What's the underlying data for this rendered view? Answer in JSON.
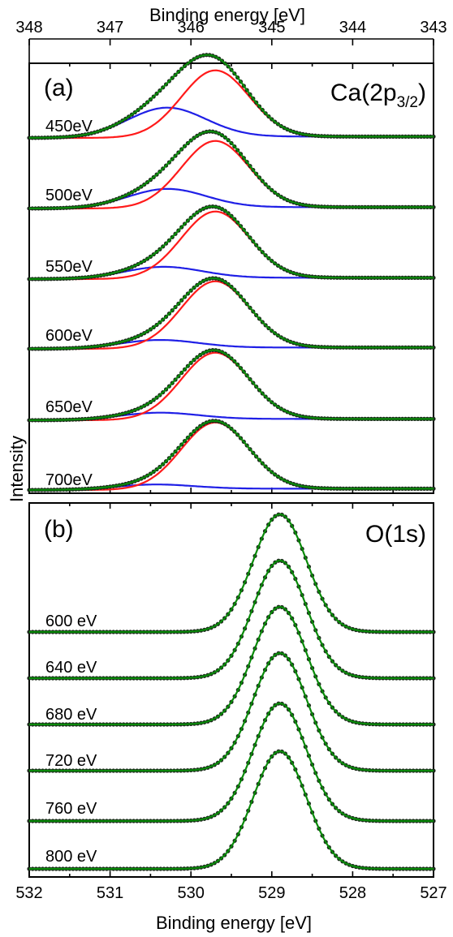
{
  "chart_data": [
    {
      "type": "line",
      "panel_label": "(a)",
      "title": "Ca(2p",
      "title_sub": "3/2",
      "title_end": ")",
      "xlabel": "Binding energy [eV]",
      "ylabel": "Intensity",
      "x_axis_position": "top",
      "xlim": [
        348,
        343
      ],
      "x_reversed": true,
      "x_ticks": [
        "348",
        "347",
        "346",
        "345",
        "344",
        "343"
      ],
      "grid": false,
      "components": [
        {
          "name": "Ca 2p3/2 main component",
          "color": "#ff1a1a",
          "center_eV": 345.7
        },
        {
          "name": "Ca 2p3/2 high-BE component",
          "color": "#1f1fe6",
          "center_eV": 346.3
        },
        {
          "name": "fit envelope",
          "color": "#0a8a0a"
        },
        {
          "name": "data",
          "color": "#1b2a1b",
          "marker": "dot"
        }
      ],
      "series": [
        {
          "label": "450eV",
          "main_peak_eV": 345.7,
          "main_rel_height": 1.0,
          "high_be_peak_eV": 346.3,
          "high_be_rel_height": 0.45,
          "background_rel": 0.02
        },
        {
          "label": "500eV",
          "main_peak_eV": 345.7,
          "main_rel_height": 1.0,
          "high_be_peak_eV": 346.3,
          "high_be_rel_height": 0.29,
          "background_rel": 0.02
        },
        {
          "label": "550eV",
          "main_peak_eV": 345.7,
          "main_rel_height": 1.0,
          "high_be_peak_eV": 346.35,
          "high_be_rel_height": 0.18,
          "background_rel": 0.02
        },
        {
          "label": "600eV",
          "main_peak_eV": 345.7,
          "main_rel_height": 1.0,
          "high_be_peak_eV": 346.4,
          "high_be_rel_height": 0.13,
          "background_rel": 0.02
        },
        {
          "label": "650eV",
          "main_peak_eV": 345.7,
          "main_rel_height": 1.0,
          "high_be_peak_eV": 346.4,
          "high_be_rel_height": 0.11,
          "background_rel": 0.02
        },
        {
          "label": "700eV",
          "main_peak_eV": 345.7,
          "main_rel_height": 1.0,
          "high_be_peak_eV": 346.45,
          "high_be_rel_height": 0.08,
          "background_rel": 0.02
        }
      ]
    },
    {
      "type": "line",
      "panel_label": "(b)",
      "title": "O(1s)",
      "xlabel": "Binding energy [eV]",
      "ylabel": "Intensity",
      "x_axis_position": "bottom",
      "xlim": [
        532,
        527
      ],
      "x_reversed": true,
      "x_ticks": [
        "532",
        "531",
        "530",
        "529",
        "528",
        "527"
      ],
      "grid": false,
      "components": [
        {
          "name": "fit",
          "color": "#0a8a0a"
        },
        {
          "name": "data",
          "color": "#1b2a1b",
          "marker": "dot"
        }
      ],
      "series": [
        {
          "label": "600 eV",
          "peak_eV": 528.9
        },
        {
          "label": "640 eV",
          "peak_eV": 528.9
        },
        {
          "label": "680 eV",
          "peak_eV": 528.9
        },
        {
          "label": "720 eV",
          "peak_eV": 528.9
        },
        {
          "label": "760 eV",
          "peak_eV": 528.9
        },
        {
          "label": "800 eV",
          "peak_eV": 528.9
        }
      ]
    }
  ]
}
